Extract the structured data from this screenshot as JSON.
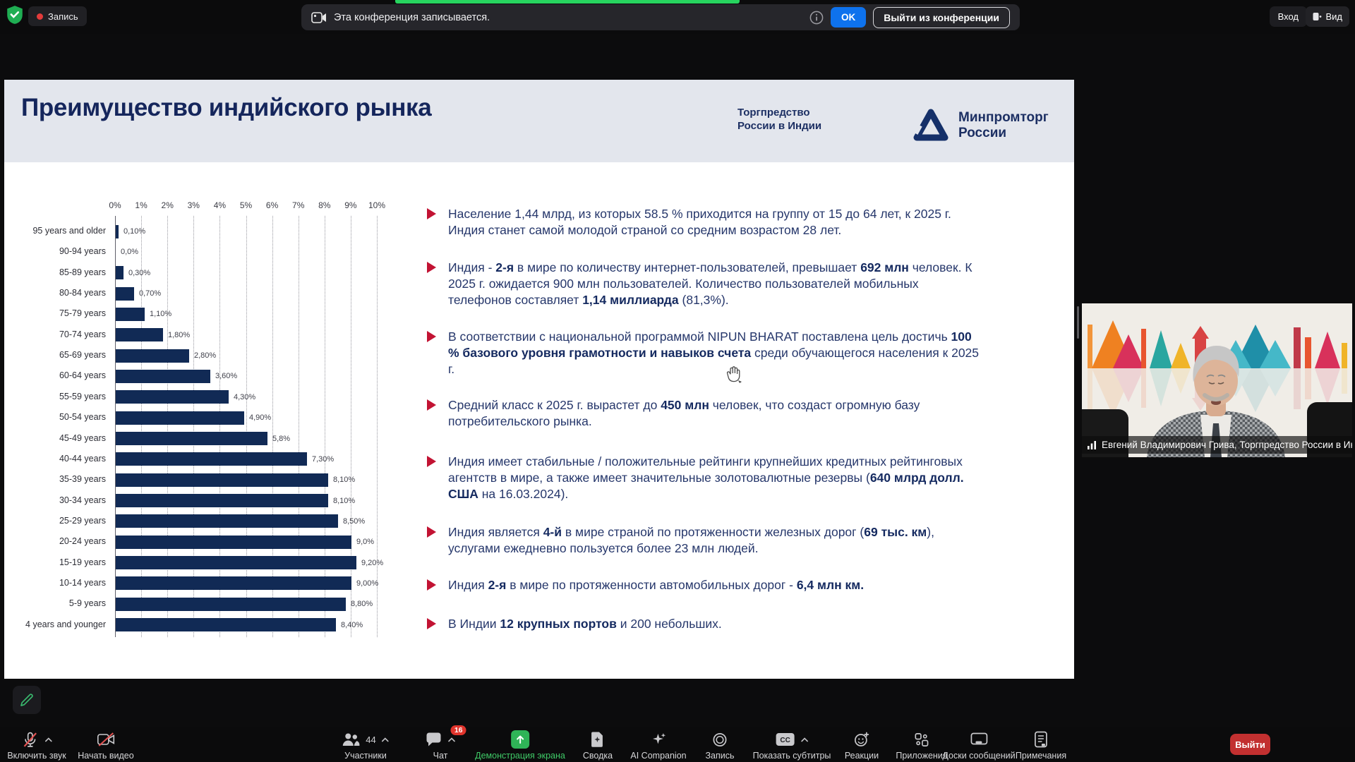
{
  "top_bar": {
    "recording_label": "Запись",
    "notification": {
      "text": "Эта конференция записывается.",
      "ok_label": "OK",
      "leave_label": "Выйти из конференции"
    },
    "login_label": "Вход",
    "view_label": "Вид"
  },
  "slide": {
    "title": "Преимущество индийского рынка",
    "org_line1": "Торгпредство",
    "org_line2": "России в Индии",
    "ministry_line1": "Минпромторг",
    "ministry_line2": "России",
    "bullets": [
      [
        {
          "t": "Население 1,44 млрд, из которых 58.5 % приходится на  группу от 15 до 64 лет, к 2025 г. Индия станет самой молодой страной со средним возрастом 28 лет.",
          "b": false
        }
      ],
      [
        {
          "t": "Индия - ",
          "b": false
        },
        {
          "t": "2-я",
          "b": true
        },
        {
          "t": " в мире по количеству интернет-пользователей, превышает ",
          "b": false
        },
        {
          "t": "692 млн",
          "b": true
        },
        {
          "t": " человек. К 2025 г. ожидается 900 млн пользователей. Количество пользователей мобильных телефонов составляет ",
          "b": false
        },
        {
          "t": "1,14 миллиарда",
          "b": true
        },
        {
          "t": " (81,3%).",
          "b": false
        }
      ],
      [
        {
          "t": "В соответствии с национальной программой  NIPUN BHARAT поставлена цель достичь ",
          "b": false
        },
        {
          "t": "100 % базового уровня грамотности и навыков счета",
          "b": true
        },
        {
          "t": " среди обучающегося населения к 2025 г.",
          "b": false
        }
      ],
      [
        {
          "t": "Средний класс к 2025 г. вырастет до ",
          "b": false
        },
        {
          "t": "450 млн",
          "b": true
        },
        {
          "t": " человек, что создаст огромную базу потребительского рынка.",
          "b": false
        }
      ],
      [
        {
          "t": "Индия имеет стабильные / положительные рейтинги крупнейших кредитных рейтинговых агентств в мире, а также имеет значительные золотовалютные резервы (",
          "b": false
        },
        {
          "t": "640 млрд долл. США",
          "b": true
        },
        {
          "t": " на 16.03.2024).",
          "b": false
        }
      ],
      [
        {
          "t": "Индия является ",
          "b": false
        },
        {
          "t": "4-й",
          "b": true
        },
        {
          "t": " в мире страной по протяженности железных дорог (",
          "b": false
        },
        {
          "t": "69 тыс. км",
          "b": true
        },
        {
          "t": "), услугами ежедневно пользуется более 23 млн людей.",
          "b": false
        }
      ],
      [
        {
          "t": "Индия ",
          "b": false
        },
        {
          "t": "2-я",
          "b": true
        },
        {
          "t": " в мире по протяженности автомобильных дорог - ",
          "b": false
        },
        {
          "t": "6,4 млн км.",
          "b": true
        }
      ],
      [
        {
          "t": "В Индии ",
          "b": false
        },
        {
          "t": "12 крупных портов",
          "b": true
        },
        {
          "t": " и 200 небольших.",
          "b": false
        }
      ]
    ]
  },
  "chart_data": {
    "type": "bar",
    "orientation": "horizontal",
    "title": "",
    "xlabel": "",
    "ylabel": "",
    "categories": [
      "95 years and older",
      "90-94 years",
      "85-89 years",
      "80-84 years",
      "75-79 years",
      "70-74 years",
      "65-69 years",
      "60-64 years",
      "55-59 years",
      "50-54 years",
      "45-49 years",
      "40-44 years",
      "35-39 years",
      "30-34 years",
      "25-29 years",
      "20-24 years",
      "15-19 years",
      "10-14 years",
      "5-9 years",
      "4 years and younger"
    ],
    "values": [
      0.1,
      0.0,
      0.3,
      0.7,
      1.1,
      1.8,
      2.8,
      3.6,
      4.3,
      4.9,
      5.8,
      7.3,
      8.1,
      8.1,
      8.5,
      9.0,
      9.2,
      9.0,
      8.8,
      8.4
    ],
    "labels": [
      "0,10%",
      "0,0%",
      "0,30%",
      "0,70%",
      "1,10%",
      "1,80%",
      "2,80%",
      "3,60%",
      "4,30%",
      "4,90%",
      "5,8%",
      "7,30%",
      "8,10%",
      "8,10%",
      "8,50%",
      "9,0%",
      "9,20%",
      "9,00%",
      "8,80%",
      "8,40%"
    ],
    "x_ticks": [
      "0%",
      "1%",
      "2%",
      "3%",
      "4%",
      "5%",
      "6%",
      "7%",
      "8%",
      "9%",
      "10%"
    ],
    "xlim": [
      0,
      10
    ],
    "grid": "dotted-vertical",
    "legend": "none",
    "bar_color": "#112a55"
  },
  "video": {
    "participant_name": "Евгений Владимирович Грива, Торгпредство России в Ин..."
  },
  "bottom_bar": {
    "items": [
      {
        "id": "unmute",
        "label": "Включить звук",
        "icon": "mic-off",
        "chevron": true
      },
      {
        "id": "start-video",
        "label": "Начать видео",
        "icon": "video-off",
        "chevron": false
      },
      {
        "id": "participants",
        "label": "Участники",
        "icon": "participants",
        "count": "44",
        "chevron": true
      },
      {
        "id": "chat",
        "label": "Чат",
        "icon": "chat",
        "badge": "16",
        "chevron": true
      },
      {
        "id": "share",
        "label": "Демонстрация экрана",
        "icon": "share",
        "active": true
      },
      {
        "id": "summary",
        "label": "Сводка",
        "icon": "summary"
      },
      {
        "id": "ai-companion",
        "label": "AI Companion",
        "icon": "ai"
      },
      {
        "id": "record",
        "label": "Запись",
        "icon": "record"
      },
      {
        "id": "captions",
        "label": "Показать субтитры",
        "icon": "cc",
        "chevron": true
      },
      {
        "id": "reactions",
        "label": "Реакции",
        "icon": "reactions"
      },
      {
        "id": "apps",
        "label": "Приложения",
        "icon": "apps"
      },
      {
        "id": "whiteboards",
        "label": "Доски сообщений",
        "icon": "whiteboard"
      },
      {
        "id": "notes",
        "label": "Примечания",
        "icon": "notes"
      }
    ],
    "leave_label": "Выйти"
  },
  "colors": {
    "share_green": "#2fb457",
    "recording_strip_green": "#27d45f",
    "zoom_blue": "#0e72ed",
    "leave_red": "#c23030",
    "badge_red": "#e0342c",
    "slide_navy": "#15265c",
    "bar_navy": "#112a55",
    "bullet_red": "#c21333",
    "slide_header_gray": "#e3e6ed"
  }
}
